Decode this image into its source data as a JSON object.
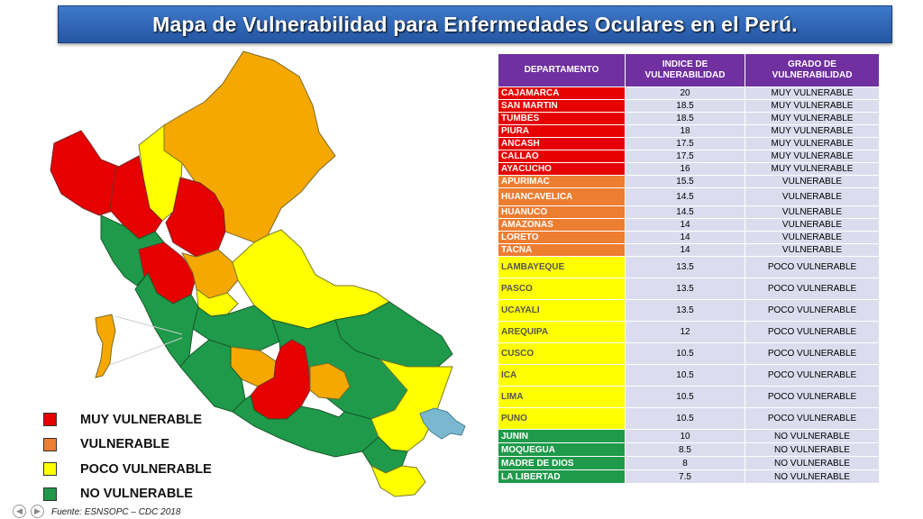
{
  "title": "Mapa de Vulnerabilidad para Enfermedades Oculares en el Perú.",
  "table": {
    "headers": [
      "DEPARTAMENTO",
      "INDICE DE VULNERABILIDAD",
      "GRADO DE VULNERABILIDAD"
    ],
    "rows": [
      {
        "dept": "CAJAMARCA",
        "index": "20",
        "grade": "MUY VULNERABLE",
        "level": "muy"
      },
      {
        "dept": "SAN MARTIN",
        "index": "18.5",
        "grade": "MUY VULNERABLE",
        "level": "muy"
      },
      {
        "dept": "TUMBES",
        "index": "18.5",
        "grade": "MUY VULNERABLE",
        "level": "muy"
      },
      {
        "dept": "PIURA",
        "index": "18",
        "grade": "MUY VULNERABLE",
        "level": "muy"
      },
      {
        "dept": "ANCASH",
        "index": "17.5",
        "grade": "MUY VULNERABLE",
        "level": "muy"
      },
      {
        "dept": "CALLAO",
        "index": "17.5",
        "grade": "MUY VULNERABLE",
        "level": "muy"
      },
      {
        "dept": "AYACUCHO",
        "index": "16",
        "grade": "MUY VULNERABLE",
        "level": "muy"
      },
      {
        "dept": "APURIMAC",
        "index": "15.5",
        "grade": "VULNERABLE",
        "level": "vul"
      },
      {
        "dept": "HUANCAVELICA",
        "index": "14.5",
        "grade": "VULNERABLE",
        "level": "vul"
      },
      {
        "dept": "HUANUCO",
        "index": "14.5",
        "grade": "VULNERABLE",
        "level": "vul"
      },
      {
        "dept": "AMAZONAS",
        "index": "14",
        "grade": "VULNERABLE",
        "level": "vul"
      },
      {
        "dept": "LORETO",
        "index": "14",
        "grade": "VULNERABLE",
        "level": "vul"
      },
      {
        "dept": "TACNA",
        "index": "14",
        "grade": "VULNERABLE",
        "level": "vul"
      },
      {
        "dept": "LAMBAYEQUE",
        "index": "13.5",
        "grade": "POCO VULNERABLE",
        "level": "poco"
      },
      {
        "dept": "PASCO",
        "index": "13.5",
        "grade": "POCO VULNERABLE",
        "level": "poco"
      },
      {
        "dept": "UCAYALI",
        "index": "13.5",
        "grade": "POCO VULNERABLE",
        "level": "poco"
      },
      {
        "dept": "AREQUIPA",
        "index": "12",
        "grade": "POCO VULNERABLE",
        "level": "poco"
      },
      {
        "dept": "CUSCO",
        "index": "10.5",
        "grade": "POCO VULNERABLE",
        "level": "poco"
      },
      {
        "dept": "ICA",
        "index": "10.5",
        "grade": "POCO VULNERABLE",
        "level": "poco"
      },
      {
        "dept": "LIMA",
        "index": "10.5",
        "grade": "POCO VULNERABLE",
        "level": "poco"
      },
      {
        "dept": "PUNO",
        "index": "10.5",
        "grade": "POCO VULNERABLE",
        "level": "poco"
      },
      {
        "dept": "JUNIN",
        "index": "10",
        "grade": "NO VULNERABLE",
        "level": "no"
      },
      {
        "dept": "MOQUEGUA",
        "index": "8.5",
        "grade": "NO VULNERABLE",
        "level": "no"
      },
      {
        "dept": "MADRE DE DIOS",
        "index": "8",
        "grade": "NO VULNERABLE",
        "level": "no"
      },
      {
        "dept": "LA LIBERTAD",
        "index": "7.5",
        "grade": "NO VULNERABLE",
        "level": "no"
      }
    ]
  },
  "legend": [
    {
      "label": "MUY VULNERABLE",
      "color": "#e60000"
    },
    {
      "label": "VULNERABLE",
      "color": "#ed7d31"
    },
    {
      "label": "POCO VULNERABLE",
      "color": "#ffff00"
    },
    {
      "label": "NO VULNERABLE",
      "color": "#1e9a4a"
    }
  ],
  "colors": {
    "muy": "#e60000",
    "vul": "#f5a800",
    "poco": "#ffff00",
    "no": "#1e9a4a",
    "lake": "#7ab8d0",
    "header": "#7030a0"
  },
  "source": "Fuente: ESNSOPC – CDC 2018",
  "nav": {
    "prev_icon": "chevron-left-icon",
    "next_icon": "chevron-right-icon"
  }
}
